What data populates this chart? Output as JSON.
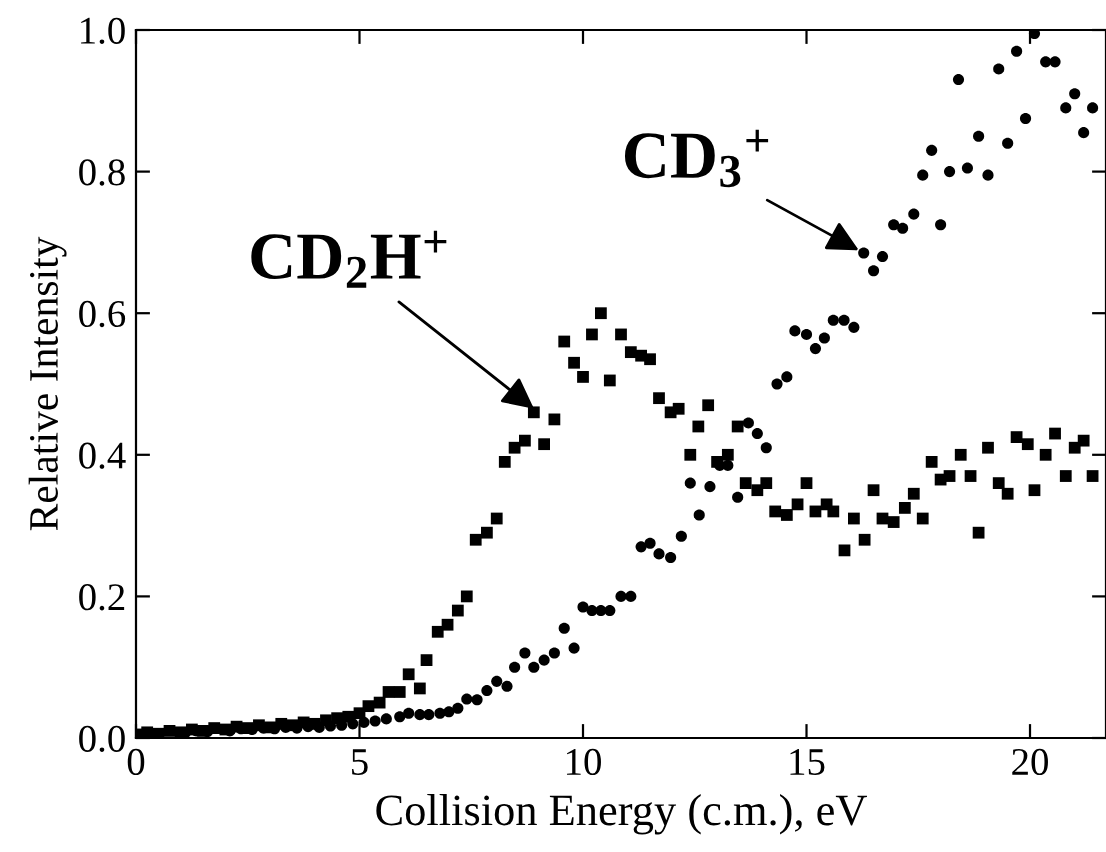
{
  "chart_data": {
    "type": "scatter",
    "xlabel": "Collision Energy (c.m.), eV",
    "ylabel": "Relative Intensity",
    "xlim": [
      0,
      21.7
    ],
    "ylim": [
      0,
      1.0
    ],
    "xticks": [
      0,
      5,
      10,
      15,
      20
    ],
    "yticks": [
      {
        "value": 0,
        "label": "0.0"
      },
      {
        "value": 0.2,
        "label": "0.2"
      },
      {
        "value": 0.4,
        "label": "0.4"
      },
      {
        "value": 0.6,
        "label": "0.6"
      },
      {
        "value": 0.8,
        "label": "0.8"
      },
      {
        "value": 1.0,
        "label": "1.0"
      }
    ],
    "grid": false,
    "legend": false,
    "annotations": [
      {
        "text": "CD$_{2}$H$^{+}$",
        "x": 9.0,
        "y": 0.46
      },
      {
        "text": "CD$_{3}$$^{+}$",
        "x": 16.28,
        "y": 0.685
      }
    ],
    "series": [
      {
        "color": "#000000",
        "marker": "square",
        "x": [
          0.15,
          0.25,
          0.5,
          0.75,
          1,
          1.25,
          1.5,
          1.75,
          2,
          2.25,
          2.5,
          2.75,
          3,
          3.25,
          3.5,
          3.75,
          4,
          4.25,
          4.5,
          4.75,
          5,
          5.2,
          5.45,
          5.65,
          5.9,
          6.1,
          6.35,
          6.5,
          6.75,
          6.97,
          7.2,
          7.4,
          7.6,
          7.85,
          8.07,
          8.25,
          8.47,
          8.7,
          8.9,
          9.13,
          9.36,
          9.58,
          9.8,
          10.0,
          10.2,
          10.4,
          10.6,
          10.85,
          11.07,
          11.3,
          11.5,
          11.7,
          11.96,
          12.14,
          12.4,
          12.58,
          12.8,
          13.0,
          13.24,
          13.46,
          13.64,
          13.9,
          14.1,
          14.3,
          14.56,
          14.8,
          15.0,
          15.2,
          15.45,
          15.6,
          15.85,
          16.06,
          16.3,
          16.5,
          16.7,
          16.95,
          17.2,
          17.4,
          17.6,
          17.8,
          18.0,
          18.2,
          18.45,
          18.67,
          18.85,
          19.06,
          19.3,
          19.5,
          19.7,
          19.95,
          20.1,
          20.35,
          20.56,
          20.8,
          21.0,
          21.2,
          21.4
        ],
        "values": [
          0.005,
          0.008,
          0.006,
          0.01,
          0.008,
          0.012,
          0.01,
          0.014,
          0.012,
          0.016,
          0.014,
          0.018,
          0.015,
          0.02,
          0.018,
          0.022,
          0.02,
          0.025,
          0.028,
          0.03,
          0.035,
          0.045,
          0.05,
          0.065,
          0.065,
          0.09,
          0.07,
          0.11,
          0.15,
          0.16,
          0.18,
          0.2,
          0.28,
          0.29,
          0.31,
          0.39,
          0.41,
          0.42,
          0.46,
          0.415,
          0.45,
          0.56,
          0.53,
          0.51,
          0.57,
          0.6,
          0.505,
          0.57,
          0.545,
          0.54,
          0.535,
          0.48,
          0.46,
          0.465,
          0.4,
          0.44,
          0.47,
          0.39,
          0.4,
          0.44,
          0.36,
          0.35,
          0.36,
          0.32,
          0.315,
          0.33,
          0.36,
          0.32,
          0.33,
          0.32,
          0.265,
          0.31,
          0.28,
          0.35,
          0.31,
          0.305,
          0.325,
          0.345,
          0.31,
          0.39,
          0.365,
          0.37,
          0.4,
          0.37,
          0.29,
          0.41,
          0.36,
          0.345,
          0.425,
          0.415,
          0.35,
          0.4,
          0.43,
          0.37,
          0.41,
          0.42,
          0.37
        ]
      },
      {
        "color": "#000000",
        "marker": "circle",
        "x": [
          1.1,
          1.35,
          1.6,
          2.1,
          2.35,
          2.6,
          2.85,
          3.1,
          3.35,
          3.6,
          3.85,
          4.1,
          4.35,
          4.6,
          4.85,
          5.1,
          5.35,
          5.6,
          5.9,
          6.1,
          6.35,
          6.55,
          6.8,
          7.0,
          7.2,
          7.4,
          7.63,
          7.85,
          8.07,
          8.3,
          8.47,
          8.7,
          8.9,
          9.13,
          9.36,
          9.58,
          9.8,
          10.0,
          10.2,
          10.4,
          10.6,
          10.85,
          11.07,
          11.3,
          11.5,
          11.7,
          11.96,
          12.2,
          12.4,
          12.6,
          12.84,
          13.06,
          13.24,
          13.46,
          13.7,
          13.9,
          14.1,
          14.34,
          14.56,
          14.74,
          15.0,
          15.2,
          15.4,
          15.6,
          15.84,
          16.06,
          16.28,
          16.5,
          16.7,
          16.95,
          17.15,
          17.4,
          17.6,
          17.8,
          18.0,
          18.2,
          18.4,
          18.6,
          18.85,
          19.06,
          19.3,
          19.5,
          19.7,
          19.9,
          20.1,
          20.35,
          20.56,
          20.8,
          21.0,
          21.2,
          21.4
        ],
        "values": [
          0.007,
          0.01,
          0.009,
          0.01,
          0.013,
          0.012,
          0.014,
          0.013,
          0.015,
          0.014,
          0.016,
          0.015,
          0.017,
          0.018,
          0.02,
          0.022,
          0.024,
          0.027,
          0.03,
          0.035,
          0.033,
          0.033,
          0.035,
          0.037,
          0.042,
          0.055,
          0.054,
          0.067,
          0.08,
          0.073,
          0.1,
          0.12,
          0.1,
          0.11,
          0.12,
          0.155,
          0.127,
          0.185,
          0.18,
          0.18,
          0.18,
          0.2,
          0.2,
          0.27,
          0.275,
          0.26,
          0.255,
          0.285,
          0.36,
          0.315,
          0.355,
          0.385,
          0.385,
          0.34,
          0.445,
          0.43,
          0.41,
          0.5,
          0.51,
          0.575,
          0.57,
          0.55,
          0.565,
          0.59,
          0.59,
          0.58,
          0.685,
          0.66,
          0.68,
          0.725,
          0.72,
          0.74,
          0.795,
          0.83,
          0.725,
          0.8,
          0.93,
          0.805,
          0.85,
          0.795,
          0.945,
          0.84,
          0.97,
          0.875,
          0.995,
          0.955,
          0.955,
          0.89,
          0.91,
          0.855,
          0.89
        ]
      }
    ]
  }
}
